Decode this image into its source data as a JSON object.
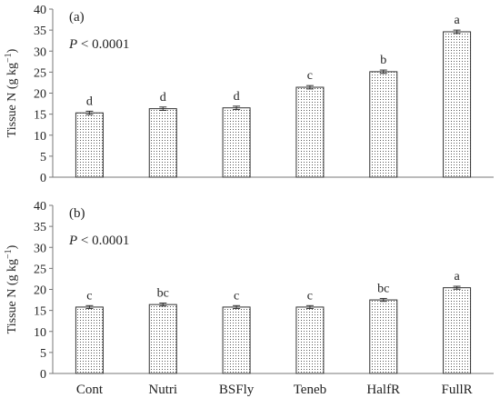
{
  "chart_data": [
    {
      "type": "bar",
      "panel_label": "(a)",
      "p_label_italic": "P",
      "p_label_rest": " < 0.0001",
      "ylabel_main": "Tissue N (g kg",
      "ylabel_sup": "−1",
      "ylabel_end": ")",
      "ylim": [
        0,
        40
      ],
      "yticks": [
        0,
        5,
        10,
        15,
        20,
        25,
        30,
        35,
        40
      ],
      "categories": [
        "Cont",
        "Nutri",
        "BSFly",
        "Teneb",
        "HalfR",
        "FullR"
      ],
      "values": [
        15.3,
        16.3,
        16.5,
        21.4,
        25.1,
        34.6
      ],
      "errors": [
        0.4,
        0.4,
        0.4,
        0.4,
        0.4,
        0.4
      ],
      "letters": [
        "d",
        "d",
        "d",
        "c",
        "b",
        "a"
      ],
      "show_xticklabels": false
    },
    {
      "type": "bar",
      "panel_label": "(b)",
      "p_label_italic": "P",
      "p_label_rest": " < 0.0001",
      "ylabel_main": "Tissue N (g kg",
      "ylabel_sup": "−1",
      "ylabel_end": ")",
      "ylim": [
        0,
        40
      ],
      "yticks": [
        0,
        5,
        10,
        15,
        20,
        25,
        30,
        35,
        40
      ],
      "categories": [
        "Cont",
        "Nutri",
        "BSFly",
        "Teneb",
        "HalfR",
        "FullR"
      ],
      "values": [
        15.8,
        16.4,
        15.8,
        15.8,
        17.5,
        20.4
      ],
      "errors": [
        0.35,
        0.35,
        0.35,
        0.35,
        0.35,
        0.35
      ],
      "letters": [
        "c",
        "bc",
        "c",
        "c",
        "bc",
        "a"
      ],
      "show_xticklabels": true
    }
  ],
  "colors": {
    "bar_fill_dots": "#555555",
    "bar_stroke": "#333333",
    "axis": "#777777",
    "text": "#222222"
  }
}
